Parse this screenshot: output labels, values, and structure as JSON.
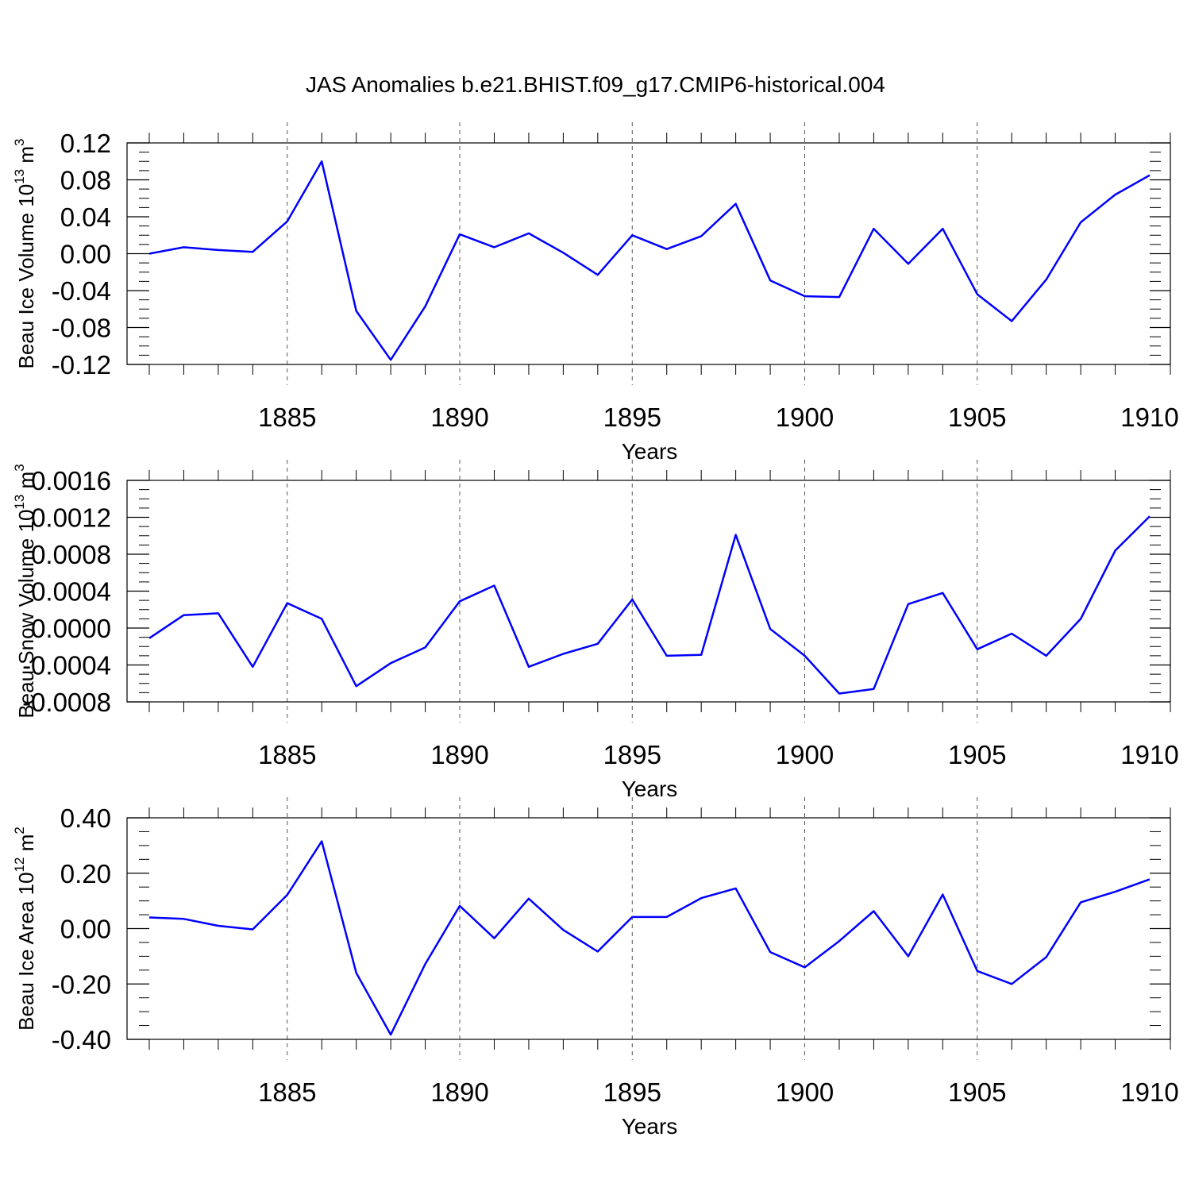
{
  "title": "JAS Anomalies b.e21.BHIST.f09_g17.CMIP6-historical.004",
  "line_color": "#0000ff",
  "chart_data": [
    {
      "type": "line",
      "ylabel_parts": [
        "Beau Ice Volume 10",
        "13",
        " m",
        "3"
      ],
      "xlabel": "Years",
      "xlim": [
        1881,
        1910
      ],
      "ylim": [
        -0.12,
        0.12
      ],
      "yticks": [
        "0.12",
        "0.08",
        "0.04",
        "0.00",
        "-0.04",
        "-0.08",
        "-0.12"
      ],
      "ytick_values": [
        0.12,
        0.08,
        0.04,
        0.0,
        -0.04,
        -0.08,
        -0.12
      ],
      "xticks": [
        "1885",
        "1890",
        "1895",
        "1900",
        "1905",
        "1910"
      ],
      "xtick_values": [
        1885,
        1890,
        1895,
        1900,
        1905,
        1910
      ],
      "x": [
        1881,
        1882,
        1883,
        1884,
        1885,
        1886,
        1887,
        1888,
        1889,
        1890,
        1891,
        1892,
        1893,
        1894,
        1895,
        1896,
        1897,
        1898,
        1899,
        1900,
        1901,
        1902,
        1903,
        1904,
        1905,
        1906,
        1907,
        1908,
        1909,
        1910
      ],
      "values": [
        0.0,
        0.007,
        0.004,
        0.002,
        0.035,
        0.1,
        -0.062,
        -0.115,
        -0.057,
        0.021,
        0.007,
        0.022,
        0.001,
        -0.023,
        0.02,
        0.005,
        0.019,
        0.054,
        -0.029,
        -0.046,
        -0.047,
        0.027,
        -0.011,
        0.027,
        -0.044,
        -0.073,
        -0.028,
        0.034,
        0.064,
        0.085
      ]
    },
    {
      "type": "line",
      "ylabel_parts": [
        "Beau Snow Volume 10",
        "13",
        " m",
        "3"
      ],
      "xlabel": "Years",
      "xlim": [
        1881,
        1910
      ],
      "ylim": [
        -0.0008,
        0.0016
      ],
      "yticks": [
        "0.0016",
        "0.0012",
        "0.0008",
        "0.0004",
        "0.0000",
        "-0.0004",
        "-0.0008"
      ],
      "ytick_values": [
        0.0016,
        0.0012,
        0.0008,
        0.0004,
        0.0,
        -0.0004,
        -0.0008
      ],
      "xticks": [
        "1885",
        "1890",
        "1895",
        "1900",
        "1905",
        "1910"
      ],
      "xtick_values": [
        1885,
        1890,
        1895,
        1900,
        1905,
        1910
      ],
      "x": [
        1881,
        1882,
        1883,
        1884,
        1885,
        1886,
        1887,
        1888,
        1889,
        1890,
        1891,
        1892,
        1893,
        1894,
        1895,
        1896,
        1897,
        1898,
        1899,
        1900,
        1901,
        1902,
        1903,
        1904,
        1905,
        1906,
        1907,
        1908,
        1909,
        1910
      ],
      "values": [
        -0.00011,
        0.00014,
        0.00016,
        -0.00042,
        0.00027,
        0.0001,
        -0.00063,
        -0.00038,
        -0.00021,
        0.00029,
        0.00046,
        -0.00042,
        -0.00028,
        -0.00017,
        0.00031,
        -0.0003,
        -0.00029,
        0.00101,
        -1e-05,
        -0.0003,
        -0.00071,
        -0.00066,
        0.00026,
        0.00038,
        -0.00023,
        -6e-05,
        -0.0003,
        0.0001,
        0.00084,
        0.00121
      ]
    },
    {
      "type": "line",
      "ylabel_parts": [
        "Beau Ice Area 10",
        "12",
        " m",
        "2"
      ],
      "xlabel": "Years",
      "xlim": [
        1881,
        1910
      ],
      "ylim": [
        -0.4,
        0.4
      ],
      "yticks": [
        "0.40",
        "0.20",
        "0.00",
        "-0.20",
        "-0.40"
      ],
      "ytick_values": [
        0.4,
        0.2,
        0.0,
        -0.2,
        -0.4
      ],
      "xticks": [
        "1885",
        "1890",
        "1895",
        "1900",
        "1905",
        "1910"
      ],
      "xtick_values": [
        1885,
        1890,
        1895,
        1900,
        1905,
        1910
      ],
      "x": [
        1881,
        1882,
        1883,
        1884,
        1885,
        1886,
        1887,
        1888,
        1889,
        1890,
        1891,
        1892,
        1893,
        1894,
        1895,
        1896,
        1897,
        1898,
        1899,
        1900,
        1901,
        1902,
        1903,
        1904,
        1905,
        1906,
        1907,
        1908,
        1909,
        1910
      ],
      "values": [
        0.04,
        0.035,
        0.01,
        -0.003,
        0.122,
        0.315,
        -0.16,
        -0.383,
        -0.128,
        0.082,
        -0.035,
        0.108,
        -0.005,
        -0.083,
        0.042,
        0.042,
        0.11,
        0.145,
        -0.085,
        -0.14,
        -0.045,
        0.063,
        -0.1,
        0.123,
        -0.153,
        -0.2,
        -0.103,
        0.095,
        0.133,
        0.178
      ]
    }
  ]
}
